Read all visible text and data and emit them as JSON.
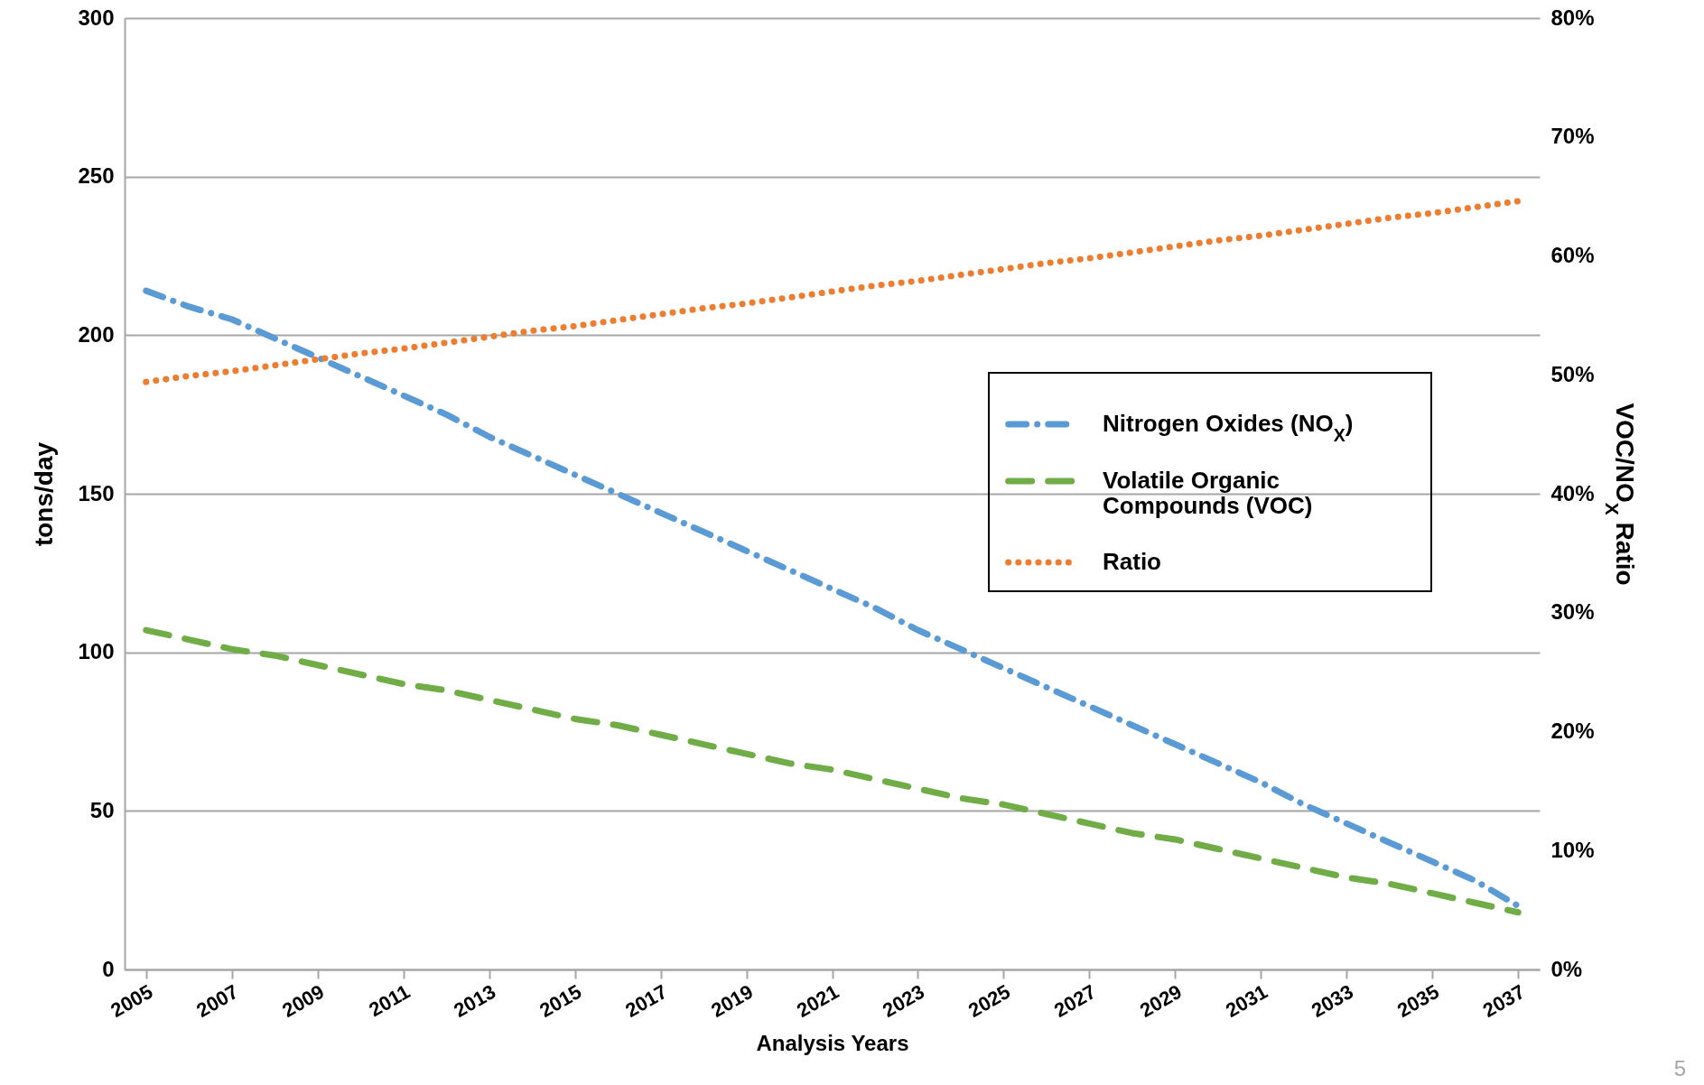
{
  "chart_data": {
    "type": "line",
    "xlabel": "Analysis Years",
    "ylabel": "tons/day",
    "y2label": "VOC/NO$_{X}$ Ratio",
    "x": [
      2005,
      2006,
      2007,
      2008,
      2009,
      2010,
      2011,
      2012,
      2013,
      2014,
      2015,
      2016,
      2017,
      2018,
      2019,
      2020,
      2021,
      2022,
      2023,
      2024,
      2025,
      2026,
      2027,
      2028,
      2029,
      2030,
      2031,
      2032,
      2033,
      2034,
      2035,
      2036,
      2037
    ],
    "series": [
      {
        "name": "Nitrogen Oxides (NO$_{X}$)",
        "color": "#5b9bd5",
        "line_style": "dashdot",
        "values": [
          214,
          209,
          205,
          199,
          193,
          187,
          181,
          175,
          168,
          162,
          156,
          150,
          144,
          138,
          132,
          126,
          120,
          114,
          107,
          101,
          95,
          89,
          83,
          77,
          71,
          65,
          59,
          52,
          46,
          40,
          34,
          28,
          20
        ]
      },
      {
        "name": "Volatile Organic Compounds (VOC)",
        "color": "#70ad47",
        "line_style": "dashed",
        "values": [
          107,
          104,
          101,
          99,
          96,
          93,
          90,
          88,
          85,
          82,
          79,
          77,
          74,
          71,
          68,
          65,
          63,
          60,
          57,
          54,
          52,
          49,
          46,
          43,
          41,
          38,
          35,
          32,
          29,
          27,
          24,
          21,
          18
        ]
      },
      {
        "name": "Ratio",
        "color": "#ed7d31",
        "line_style": "dotted",
        "axis": "y2",
        "values": [
          49.4,
          49.9,
          50.3,
          50.8,
          51.3,
          51.8,
          52.2,
          52.7,
          53.2,
          53.7,
          54.1,
          54.6,
          55.1,
          55.6,
          56,
          56.5,
          57,
          57.5,
          57.9,
          58.4,
          58.9,
          59.4,
          59.8,
          60.3,
          60.8,
          61.3,
          61.7,
          62.2,
          62.7,
          63.2,
          63.6,
          64.1,
          64.6
        ]
      }
    ],
    "xlim": [
      2004.5,
      2037.5
    ],
    "xticks": [
      2005,
      2007,
      2009,
      2011,
      2013,
      2015,
      2017,
      2019,
      2021,
      2023,
      2025,
      2027,
      2029,
      2031,
      2033,
      2035,
      2037
    ],
    "ylim": [
      0,
      300
    ],
    "yticks": [
      0,
      50,
      100,
      150,
      200,
      250,
      300
    ],
    "y2lim": [
      0,
      80
    ],
    "y2ticks": [
      {
        "value": 0,
        "label": "0%"
      },
      {
        "value": 10,
        "label": "10%"
      },
      {
        "value": 20,
        "label": "20%"
      },
      {
        "value": 30,
        "label": "30%"
      },
      {
        "value": 40,
        "label": "40%"
      },
      {
        "value": 50,
        "label": "50%"
      },
      {
        "value": 60,
        "label": "60%"
      },
      {
        "value": 70,
        "label": "70%"
      },
      {
        "value": 80,
        "label": "80%"
      }
    ],
    "grid": "y",
    "legend": "right",
    "marker": "none",
    "annotations": [
      "5"
    ]
  }
}
